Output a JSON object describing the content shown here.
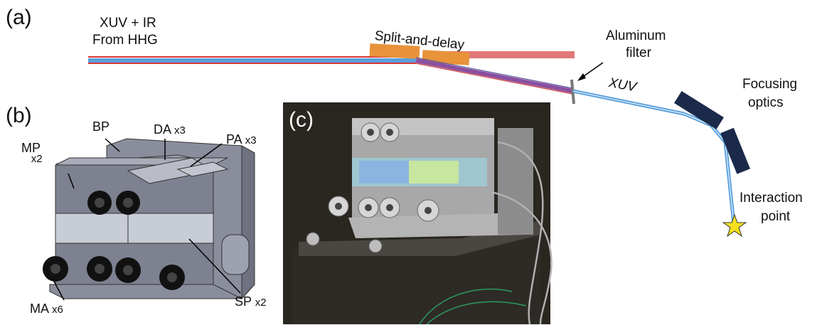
{
  "panels": {
    "a": "(a)",
    "b": "(b)",
    "c": "(c)"
  },
  "labels": {
    "source_line1": "XUV + IR",
    "source_line2": "From HHG",
    "split_delay": "Split-and-delay",
    "filter_line1": "Aluminum",
    "filter_line2": "filter",
    "xuv": "XUV",
    "focusing_line1": "Focusing",
    "focusing_line2": "optics",
    "interaction_line1": "Interaction",
    "interaction_line2": "point"
  },
  "parts": {
    "bp": "BP",
    "da": "DA",
    "da_count": "x3",
    "pa": "PA",
    "pa_count": "x3",
    "mp": "MP",
    "mp_count": "x2",
    "sp": "SP",
    "sp_count": "x2",
    "ma": "MA",
    "ma_count": "x6"
  },
  "colors": {
    "ir_beam": "#e06a6a",
    "xuv_beam": "#5aa0dd",
    "split_mirror": "#e8923a",
    "focusing_mirror": "#1b2a4a",
    "filter": "#777777",
    "interaction_star": "#f5e020"
  }
}
